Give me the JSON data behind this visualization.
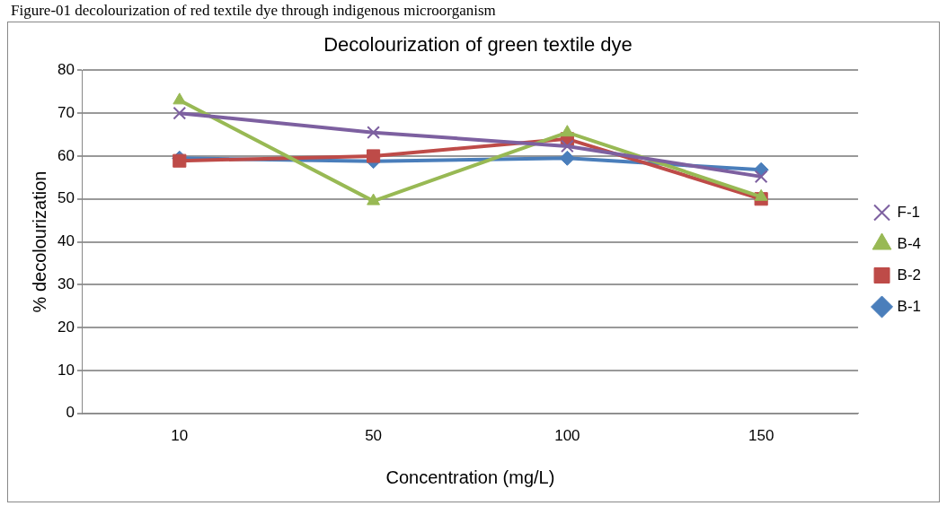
{
  "chart_data": {
    "type": "line",
    "title": "Decolourization of green textile dye",
    "xlabel": "Concentration (mg/L)",
    "ylabel": "% decolourization",
    "annotations": [
      "Figure-01  decolourization of red textile dye through indigenous microorganism"
    ],
    "categories": [
      "10",
      "50",
      "100",
      "150"
    ],
    "series": [
      {
        "name": "B-1",
        "color": "#4a7ebb",
        "marker": "diamond",
        "values": [
          59.5,
          58.8,
          59.5,
          56.8
        ]
      },
      {
        "name": "B-2",
        "color": "#be4b48",
        "marker": "square",
        "values": [
          58.9,
          60,
          64,
          50
        ]
      },
      {
        "name": "B-4",
        "color": "#98b954",
        "marker": "triangle",
        "values": [
          73,
          49.5,
          65.5,
          50.5
        ]
      },
      {
        "name": "F-1",
        "color": "#7d60a0",
        "marker": "cross",
        "values": [
          70,
          65.5,
          62.3,
          55.2
        ]
      }
    ],
    "ylim": [
      0,
      80
    ],
    "yticks": [
      0,
      10,
      20,
      30,
      40,
      50,
      60,
      70,
      80
    ],
    "grid": "y",
    "legend": "right"
  }
}
